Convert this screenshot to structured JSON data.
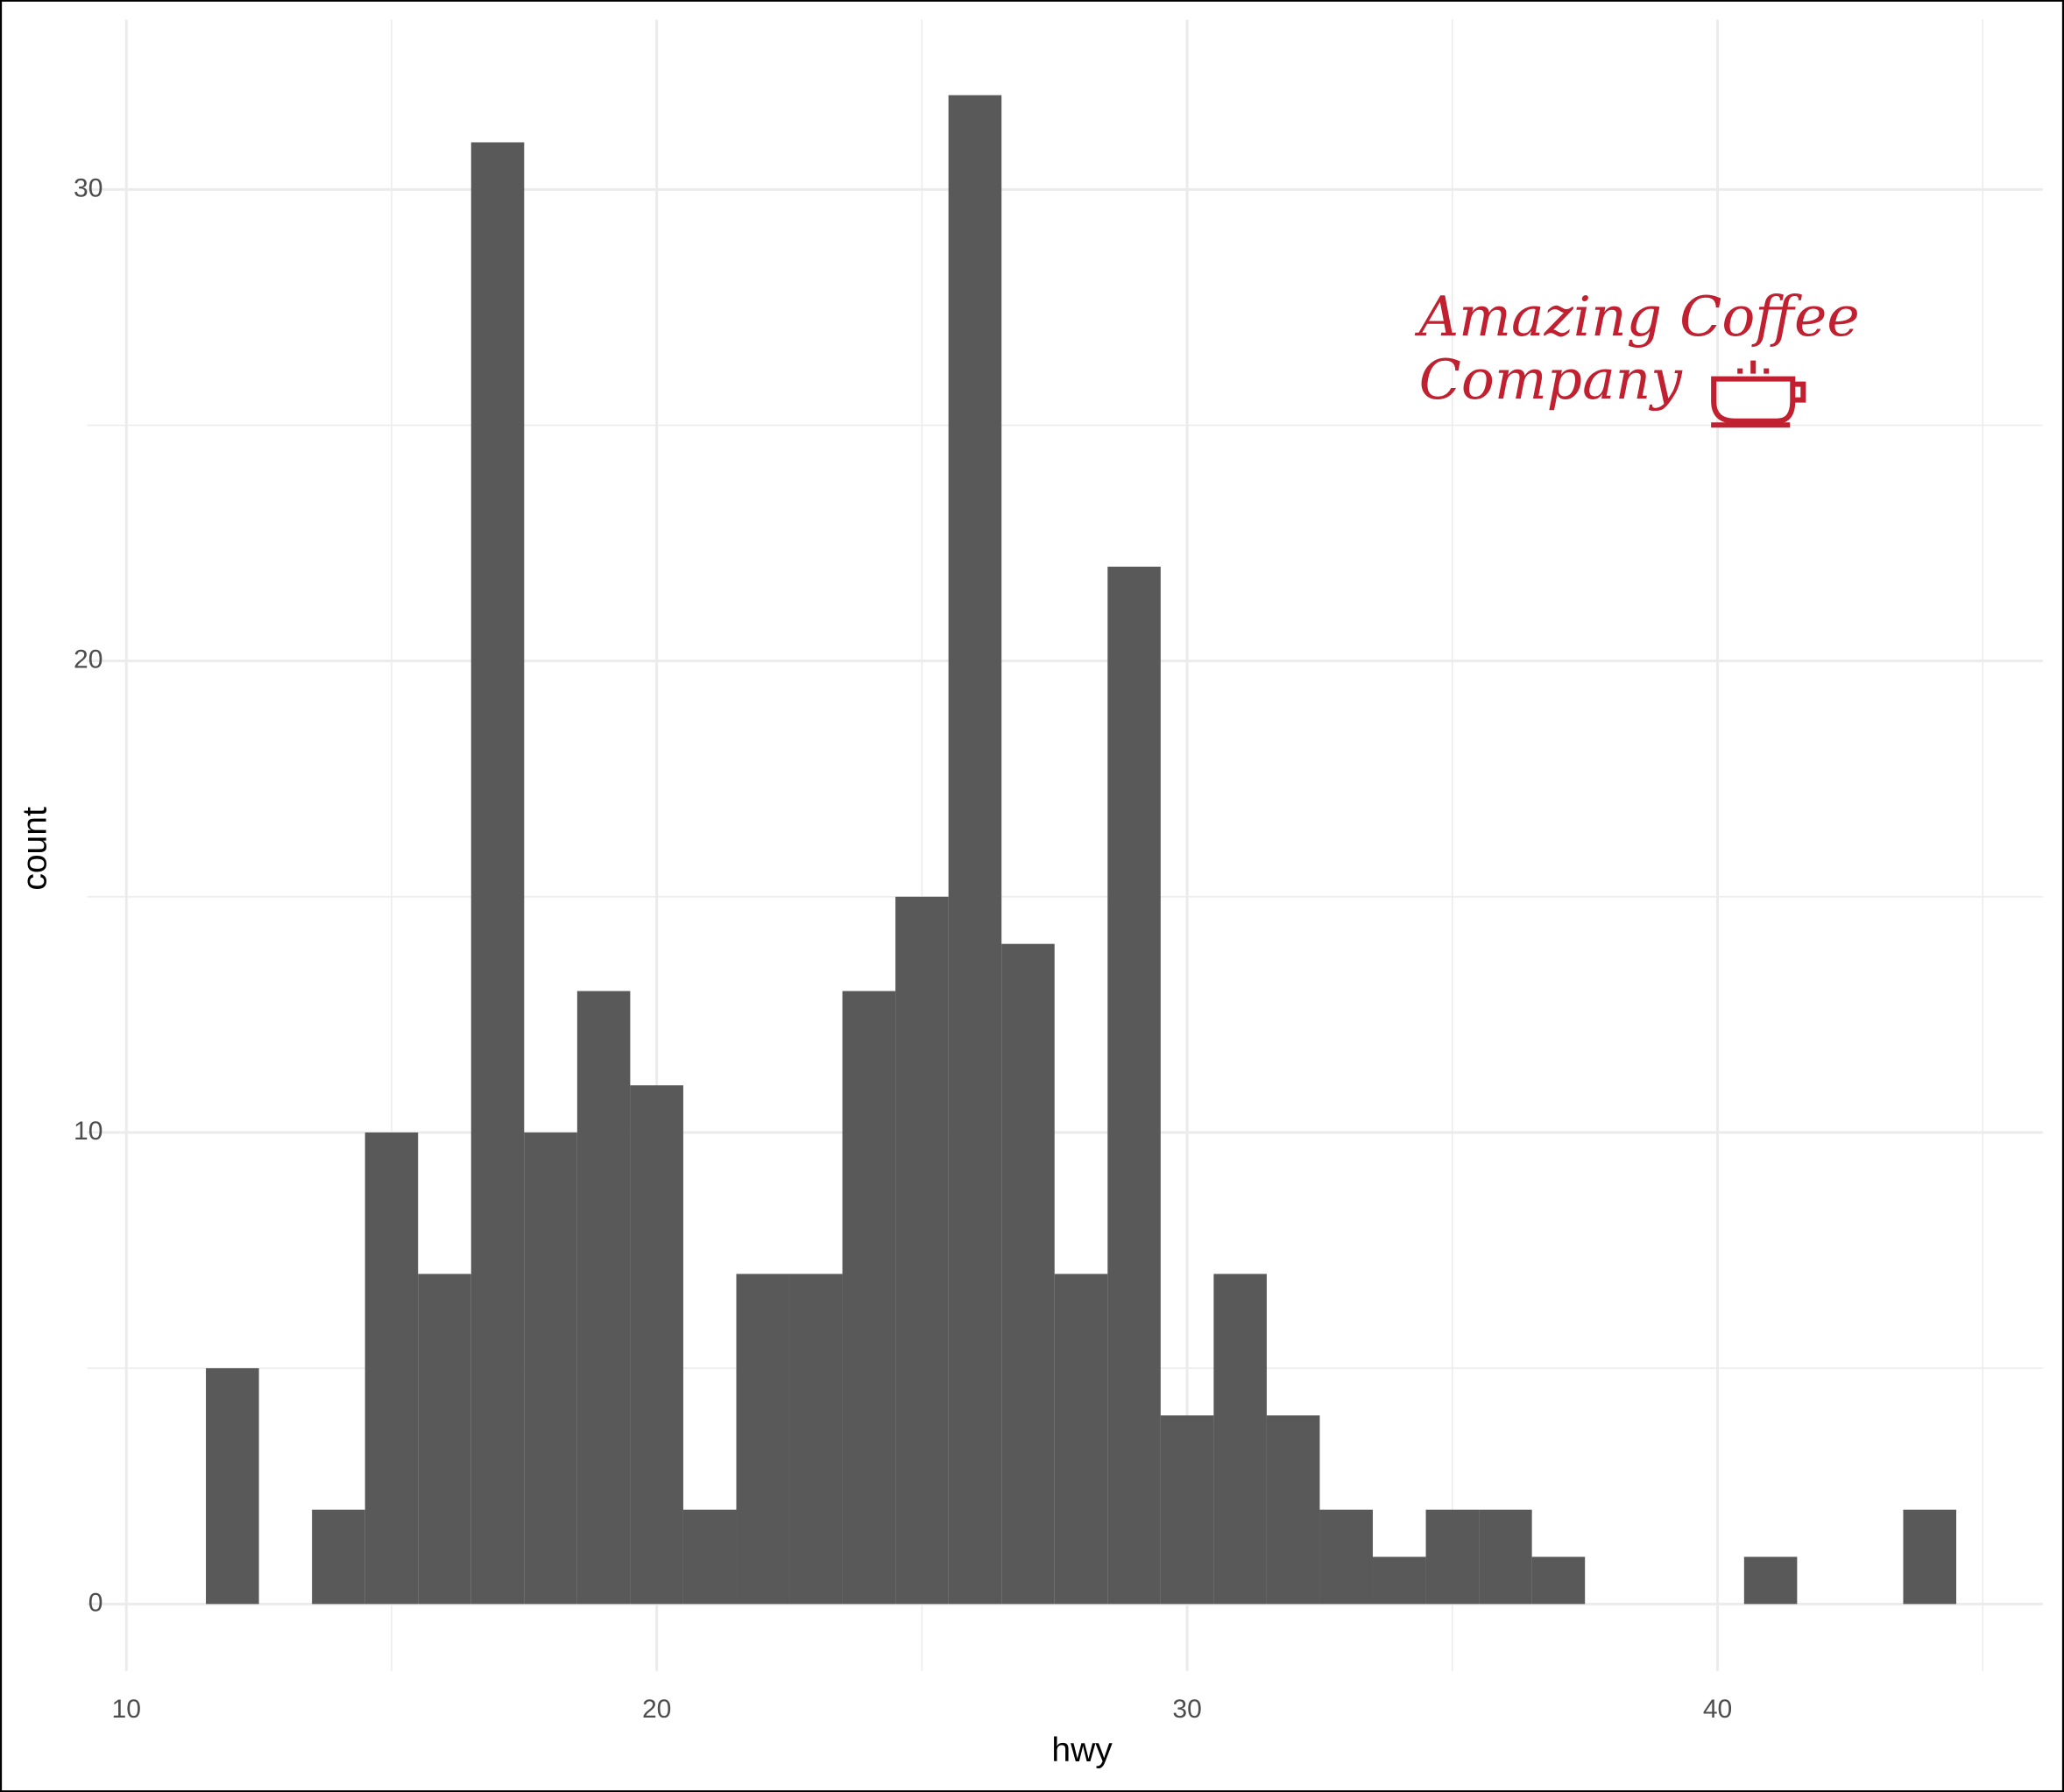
{
  "chart_data": {
    "type": "histogram",
    "x_label": "hwy",
    "y_label": "count",
    "bins": [
      11.5,
      12.5,
      13.5,
      14.5,
      15.5,
      16.5,
      17.5,
      18.5,
      19.5,
      20.5,
      21.5,
      22.5,
      23.5,
      24.5,
      25.5,
      26.5,
      27.5,
      28.5,
      29.5,
      30.5,
      31.5,
      32.5,
      33.5,
      34.5,
      35.5,
      36.5,
      37.5,
      38.5,
      39.5,
      40.5,
      41.5,
      42.5,
      43.5,
      44.5
    ],
    "values": [
      5,
      0,
      2,
      10,
      7,
      31,
      10,
      13,
      11,
      2,
      7,
      7,
      13,
      15,
      32,
      14,
      7,
      22,
      4,
      7,
      4,
      2,
      1,
      2,
      2,
      1,
      0,
      0,
      0,
      1,
      0,
      0,
      2
    ],
    "color": "#595959",
    "xlim": [
      9.26,
      46.13
    ],
    "ylim": [
      -1.42,
      33.6
    ],
    "xticks": [
      10,
      20,
      30,
      40
    ],
    "yticks": [
      0,
      10,
      20,
      30
    ],
    "x_minor_breaks": [
      15,
      25,
      35,
      45
    ],
    "y_minor_breaks": [
      5,
      15,
      25
    ],
    "grid": true,
    "annotation": {
      "lines": [
        "Amazing Coffee",
        "Company"
      ],
      "color": "#c0202f"
    }
  }
}
